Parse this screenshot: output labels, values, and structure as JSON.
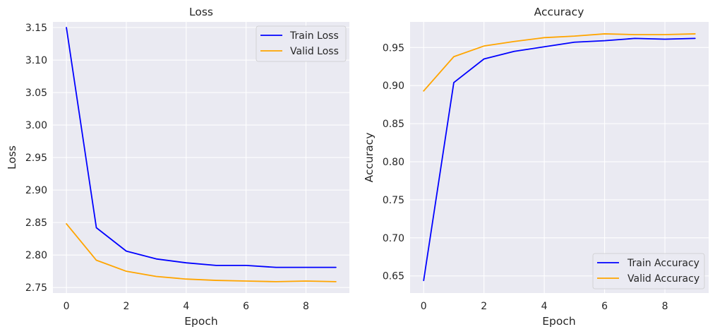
{
  "chart_data": [
    {
      "type": "line",
      "title": "Loss",
      "xlabel": "Epoch",
      "ylabel": "Loss",
      "x": [
        0,
        1,
        2,
        3,
        4,
        5,
        6,
        7,
        8,
        9
      ],
      "xlim": [
        -0.45,
        9.45
      ],
      "ylim": [
        2.7415,
        3.1587
      ],
      "xticks": [
        "0",
        "2",
        "4",
        "6",
        "8"
      ],
      "yticks": [
        "2.75",
        "2.80",
        "2.85",
        "2.90",
        "2.95",
        "3.00",
        "3.05",
        "3.10",
        "3.15"
      ],
      "grid": true,
      "legend_position": "top-right",
      "series": [
        {
          "name": "Train Loss",
          "color": "#0000ff",
          "values": [
            3.15,
            2.842,
            2.806,
            2.794,
            2.788,
            2.784,
            2.784,
            2.781,
            2.781,
            2.781
          ]
        },
        {
          "name": "Valid Loss",
          "color": "#ffa500",
          "values": [
            2.848,
            2.792,
            2.775,
            2.767,
            2.763,
            2.761,
            2.76,
            2.759,
            2.76,
            2.759
          ]
        }
      ]
    },
    {
      "type": "line",
      "title": "Accuracy",
      "xlabel": "Epoch",
      "ylabel": "Accuracy",
      "x": [
        0,
        1,
        2,
        3,
        4,
        5,
        6,
        7,
        8,
        9
      ],
      "xlim": [
        -0.45,
        9.45
      ],
      "ylim": [
        0.6275,
        0.9837
      ],
      "xticks": [
        "0",
        "2",
        "4",
        "6",
        "8"
      ],
      "yticks": [
        "0.65",
        "0.70",
        "0.75",
        "0.80",
        "0.85",
        "0.90",
        "0.95"
      ],
      "grid": true,
      "legend_position": "bottom-right",
      "series": [
        {
          "name": "Train Accuracy",
          "color": "#0000ff",
          "values": [
            0.644,
            0.904,
            0.935,
            0.945,
            0.951,
            0.957,
            0.959,
            0.962,
            0.961,
            0.962
          ]
        },
        {
          "name": "Valid Accuracy",
          "color": "#ffa500",
          "values": [
            0.893,
            0.938,
            0.952,
            0.958,
            0.963,
            0.965,
            0.968,
            0.967,
            0.967,
            0.968
          ]
        }
      ]
    }
  ]
}
